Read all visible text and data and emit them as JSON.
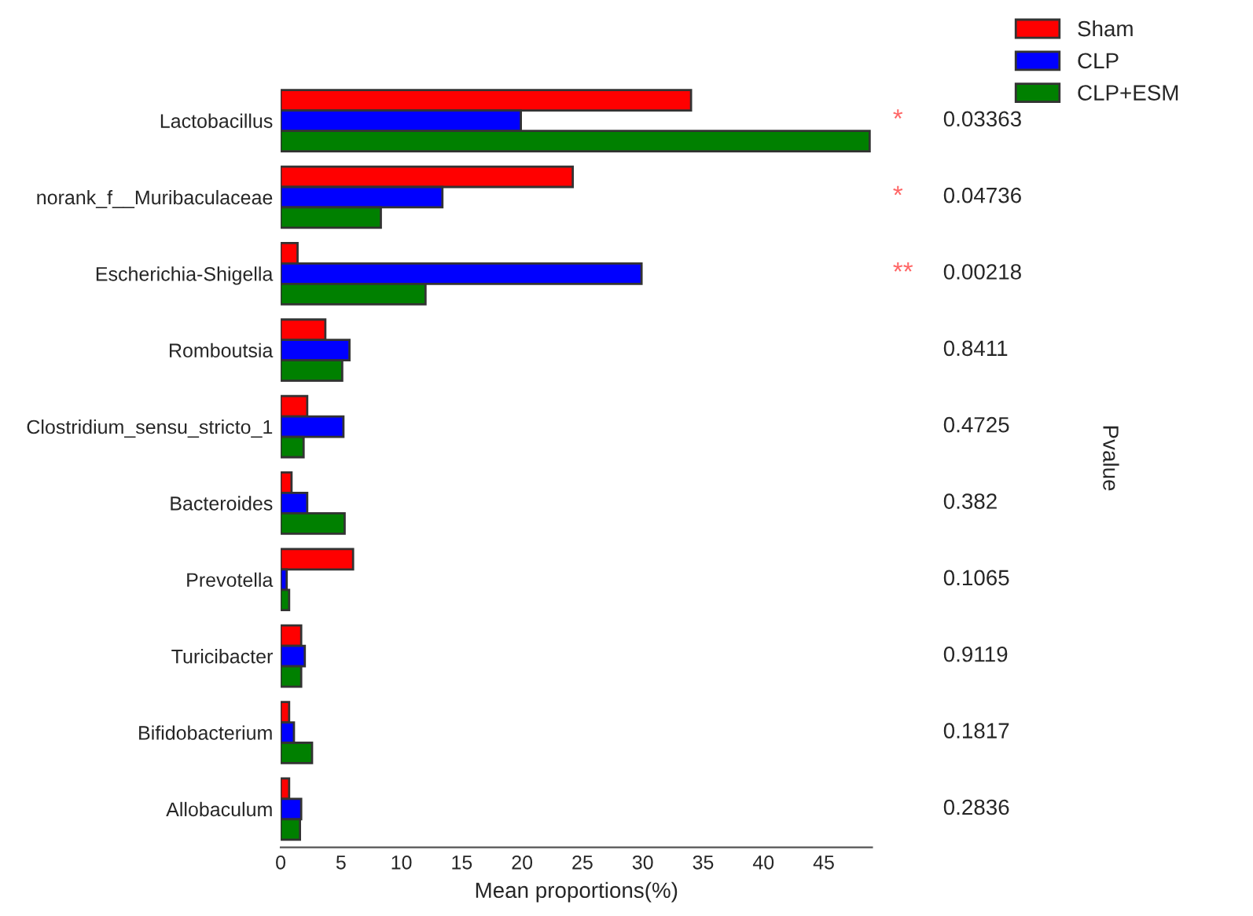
{
  "chart_data": {
    "type": "bar",
    "orientation": "horizontal",
    "xlabel": "Mean proportions(%)",
    "categories": [
      "Lactobacillus",
      "norank_f__Muribaculaceae",
      "Escherichia-Shigella",
      "Romboutsia",
      "Clostridium_sensu_stricto_1",
      "Bacteroides",
      "Prevotella",
      "Turicibacter",
      "Bifidobacterium",
      "Allobaculum"
    ],
    "series": [
      {
        "name": "Sham",
        "color": "#ff0000",
        "values": [
          34.0,
          24.2,
          1.4,
          3.7,
          2.2,
          0.9,
          6.0,
          1.7,
          0.7,
          0.7
        ]
      },
      {
        "name": "CLP",
        "color": "#0000ff",
        "values": [
          19.9,
          13.4,
          29.9,
          5.7,
          5.2,
          2.2,
          0.5,
          2.0,
          1.1,
          1.7
        ]
      },
      {
        "name": "CLP+ESM",
        "color": "#008000",
        "values": [
          48.8,
          8.3,
          12.0,
          5.1,
          1.9,
          5.3,
          0.7,
          1.7,
          2.6,
          1.6
        ]
      }
    ],
    "xlim": [
      0,
      49
    ],
    "xticks": [
      0,
      5,
      10,
      15,
      20,
      25,
      30,
      35,
      40,
      45
    ],
    "legend": "top right",
    "grid": false,
    "annotations": [
      "0.03363",
      "0.04736",
      "0.00218",
      "0.8411",
      "0.4725",
      "0.382",
      "0.1065",
      "0.9119",
      "0.1817",
      "0.2836",
      "*",
      "*",
      "**",
      "Pvalue"
    ]
  }
}
